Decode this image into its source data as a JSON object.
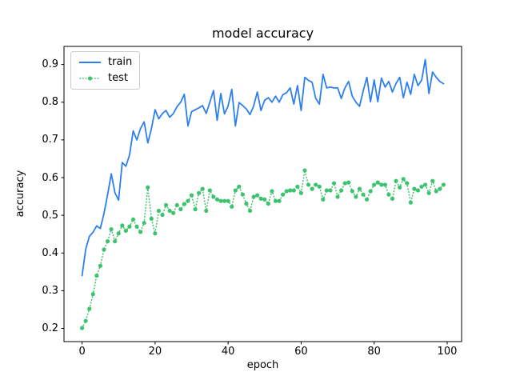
{
  "chart_data": {
    "type": "line",
    "title": "model accuracy",
    "xlabel": "epoch",
    "ylabel": "accuracy",
    "grid": false,
    "legend_position": "upper-left",
    "xlim": [
      -4.95,
      103.95
    ],
    "ylim": [
      0.165,
      0.948
    ],
    "xticks": [
      0,
      20,
      40,
      60,
      80,
      100
    ],
    "yticks": [
      0.2,
      0.3,
      0.4,
      0.5,
      0.6,
      0.7,
      0.8,
      0.9
    ],
    "axis_color": "#000000",
    "x": [
      0,
      1,
      2,
      3,
      4,
      5,
      6,
      7,
      8,
      9,
      10,
      11,
      12,
      13,
      14,
      15,
      16,
      17,
      18,
      19,
      20,
      21,
      22,
      23,
      24,
      25,
      26,
      27,
      28,
      29,
      30,
      31,
      32,
      33,
      34,
      35,
      36,
      37,
      38,
      39,
      40,
      41,
      42,
      43,
      44,
      45,
      46,
      47,
      48,
      49,
      50,
      51,
      52,
      53,
      54,
      55,
      56,
      57,
      58,
      59,
      60,
      61,
      62,
      63,
      64,
      65,
      66,
      67,
      68,
      69,
      70,
      71,
      72,
      73,
      74,
      75,
      76,
      77,
      78,
      79,
      80,
      81,
      82,
      83,
      84,
      85,
      86,
      87,
      88,
      89,
      90,
      91,
      92,
      93,
      94,
      95,
      96,
      97,
      98,
      99
    ],
    "series": [
      {
        "name": "train",
        "color": "#2d7ff0",
        "style": "solid",
        "values": [
          0.34,
          0.41,
          0.444,
          0.455,
          0.472,
          0.465,
          0.505,
          0.555,
          0.61,
          0.56,
          0.54,
          0.64,
          0.63,
          0.66,
          0.724,
          0.7,
          0.73,
          0.748,
          0.692,
          0.73,
          0.78,
          0.756,
          0.77,
          0.778,
          0.76,
          0.77,
          0.788,
          0.8,
          0.821,
          0.737,
          0.775,
          0.78,
          0.785,
          0.791,
          0.77,
          0.8,
          0.831,
          0.752,
          0.823,
          0.769,
          0.79,
          0.834,
          0.737,
          0.799,
          0.791,
          0.782,
          0.767,
          0.79,
          0.827,
          0.778,
          0.805,
          0.812,
          0.8,
          0.816,
          0.8,
          0.82,
          0.825,
          0.838,
          0.795,
          0.844,
          0.778,
          0.866,
          0.858,
          0.853,
          0.81,
          0.795,
          0.874,
          0.838,
          0.84,
          0.838,
          0.838,
          0.81,
          0.838,
          0.855,
          0.816,
          0.8,
          0.789,
          0.83,
          0.866,
          0.801,
          0.859,
          0.801,
          0.864,
          0.84,
          0.855,
          0.827,
          0.85,
          0.866,
          0.812,
          0.853,
          0.821,
          0.874,
          0.844,
          0.858,
          0.913,
          0.823,
          0.88,
          0.866,
          0.855,
          0.849
        ]
      },
      {
        "name": "test",
        "color": "#3cc36d",
        "style": "dotted-marker",
        "values": [
          0.201,
          0.22,
          0.252,
          0.291,
          0.34,
          0.366,
          0.409,
          0.431,
          0.463,
          0.431,
          0.452,
          0.473,
          0.459,
          0.47,
          0.489,
          0.47,
          0.456,
          0.48,
          0.574,
          0.491,
          0.452,
          0.512,
          0.501,
          0.527,
          0.512,
          0.506,
          0.527,
          0.516,
          0.53,
          0.538,
          0.553,
          0.516,
          0.559,
          0.57,
          0.512,
          0.566,
          0.549,
          0.542,
          0.538,
          0.538,
          0.538,
          0.523,
          0.566,
          0.576,
          0.555,
          0.531,
          0.512,
          0.549,
          0.553,
          0.544,
          0.542,
          0.531,
          0.564,
          0.538,
          0.538,
          0.555,
          0.564,
          0.566,
          0.566,
          0.576,
          0.559,
          0.619,
          0.581,
          0.57,
          0.581,
          0.576,
          0.542,
          0.566,
          0.566,
          0.585,
          0.549,
          0.566,
          0.585,
          0.587,
          0.564,
          0.549,
          0.57,
          0.555,
          0.542,
          0.564,
          0.581,
          0.587,
          0.581,
          0.581,
          0.555,
          0.544,
          0.591,
          0.574,
          0.596,
          0.585,
          0.534,
          0.57,
          0.566,
          0.576,
          0.581,
          0.559,
          0.591,
          0.564,
          0.57,
          0.581
        ]
      }
    ]
  }
}
